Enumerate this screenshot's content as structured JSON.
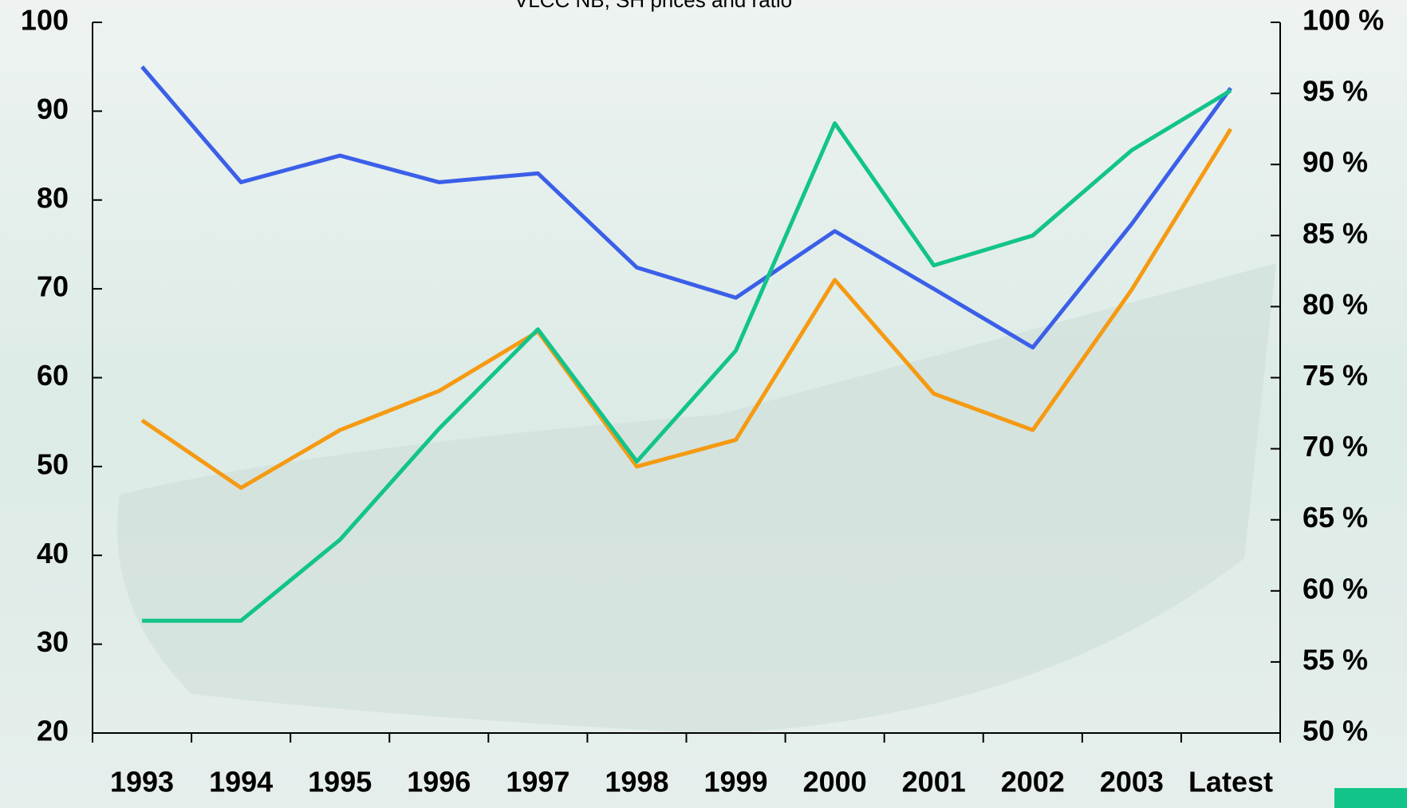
{
  "chart_data": {
    "type": "line",
    "title": "VLCC NB, SH prices and ratio",
    "categories": [
      "1993",
      "1994",
      "1995",
      "1996",
      "1997",
      "1998",
      "1999",
      "2000",
      "2001",
      "2002",
      "2003",
      "Latest"
    ],
    "series": [
      {
        "color": "#3b5fe8",
        "values": [
          95,
          82,
          85,
          82,
          83,
          72.4,
          69,
          76.5,
          70,
          63.4,
          77.3,
          92.6
        ]
      },
      {
        "color": "#f59a12",
        "values": [
          55.2,
          47.6,
          54.1,
          58.5,
          65.2,
          50,
          53,
          71,
          58.2,
          54.1,
          69.9,
          88
        ]
      },
      {
        "color": "#12c48a",
        "axis": "y2",
        "values": [
          57.9,
          57.9,
          63.6,
          71.4,
          78.4,
          69.1,
          76.9,
          92.9,
          82.9,
          85,
          91,
          95.2
        ]
      }
    ],
    "ylim": [
      20,
      100
    ],
    "yticks": [
      20,
      30,
      40,
      50,
      60,
      70,
      80,
      90,
      100
    ],
    "y2lim": [
      50,
      100
    ],
    "y2ticks": [
      {
        "value": 50,
        "label": "50 %"
      },
      {
        "value": 55,
        "label": "55 %"
      },
      {
        "value": 60,
        "label": "60 %"
      },
      {
        "value": 65,
        "label": "65 %"
      },
      {
        "value": 70,
        "label": "70 %"
      },
      {
        "value": 75,
        "label": "75 %"
      },
      {
        "value": 80,
        "label": "80 %"
      },
      {
        "value": 85,
        "label": "85 %"
      },
      {
        "value": 90,
        "label": "90 %"
      },
      {
        "value": 95,
        "label": "95 %"
      },
      {
        "value": 100,
        "label": "100 %"
      }
    ]
  }
}
